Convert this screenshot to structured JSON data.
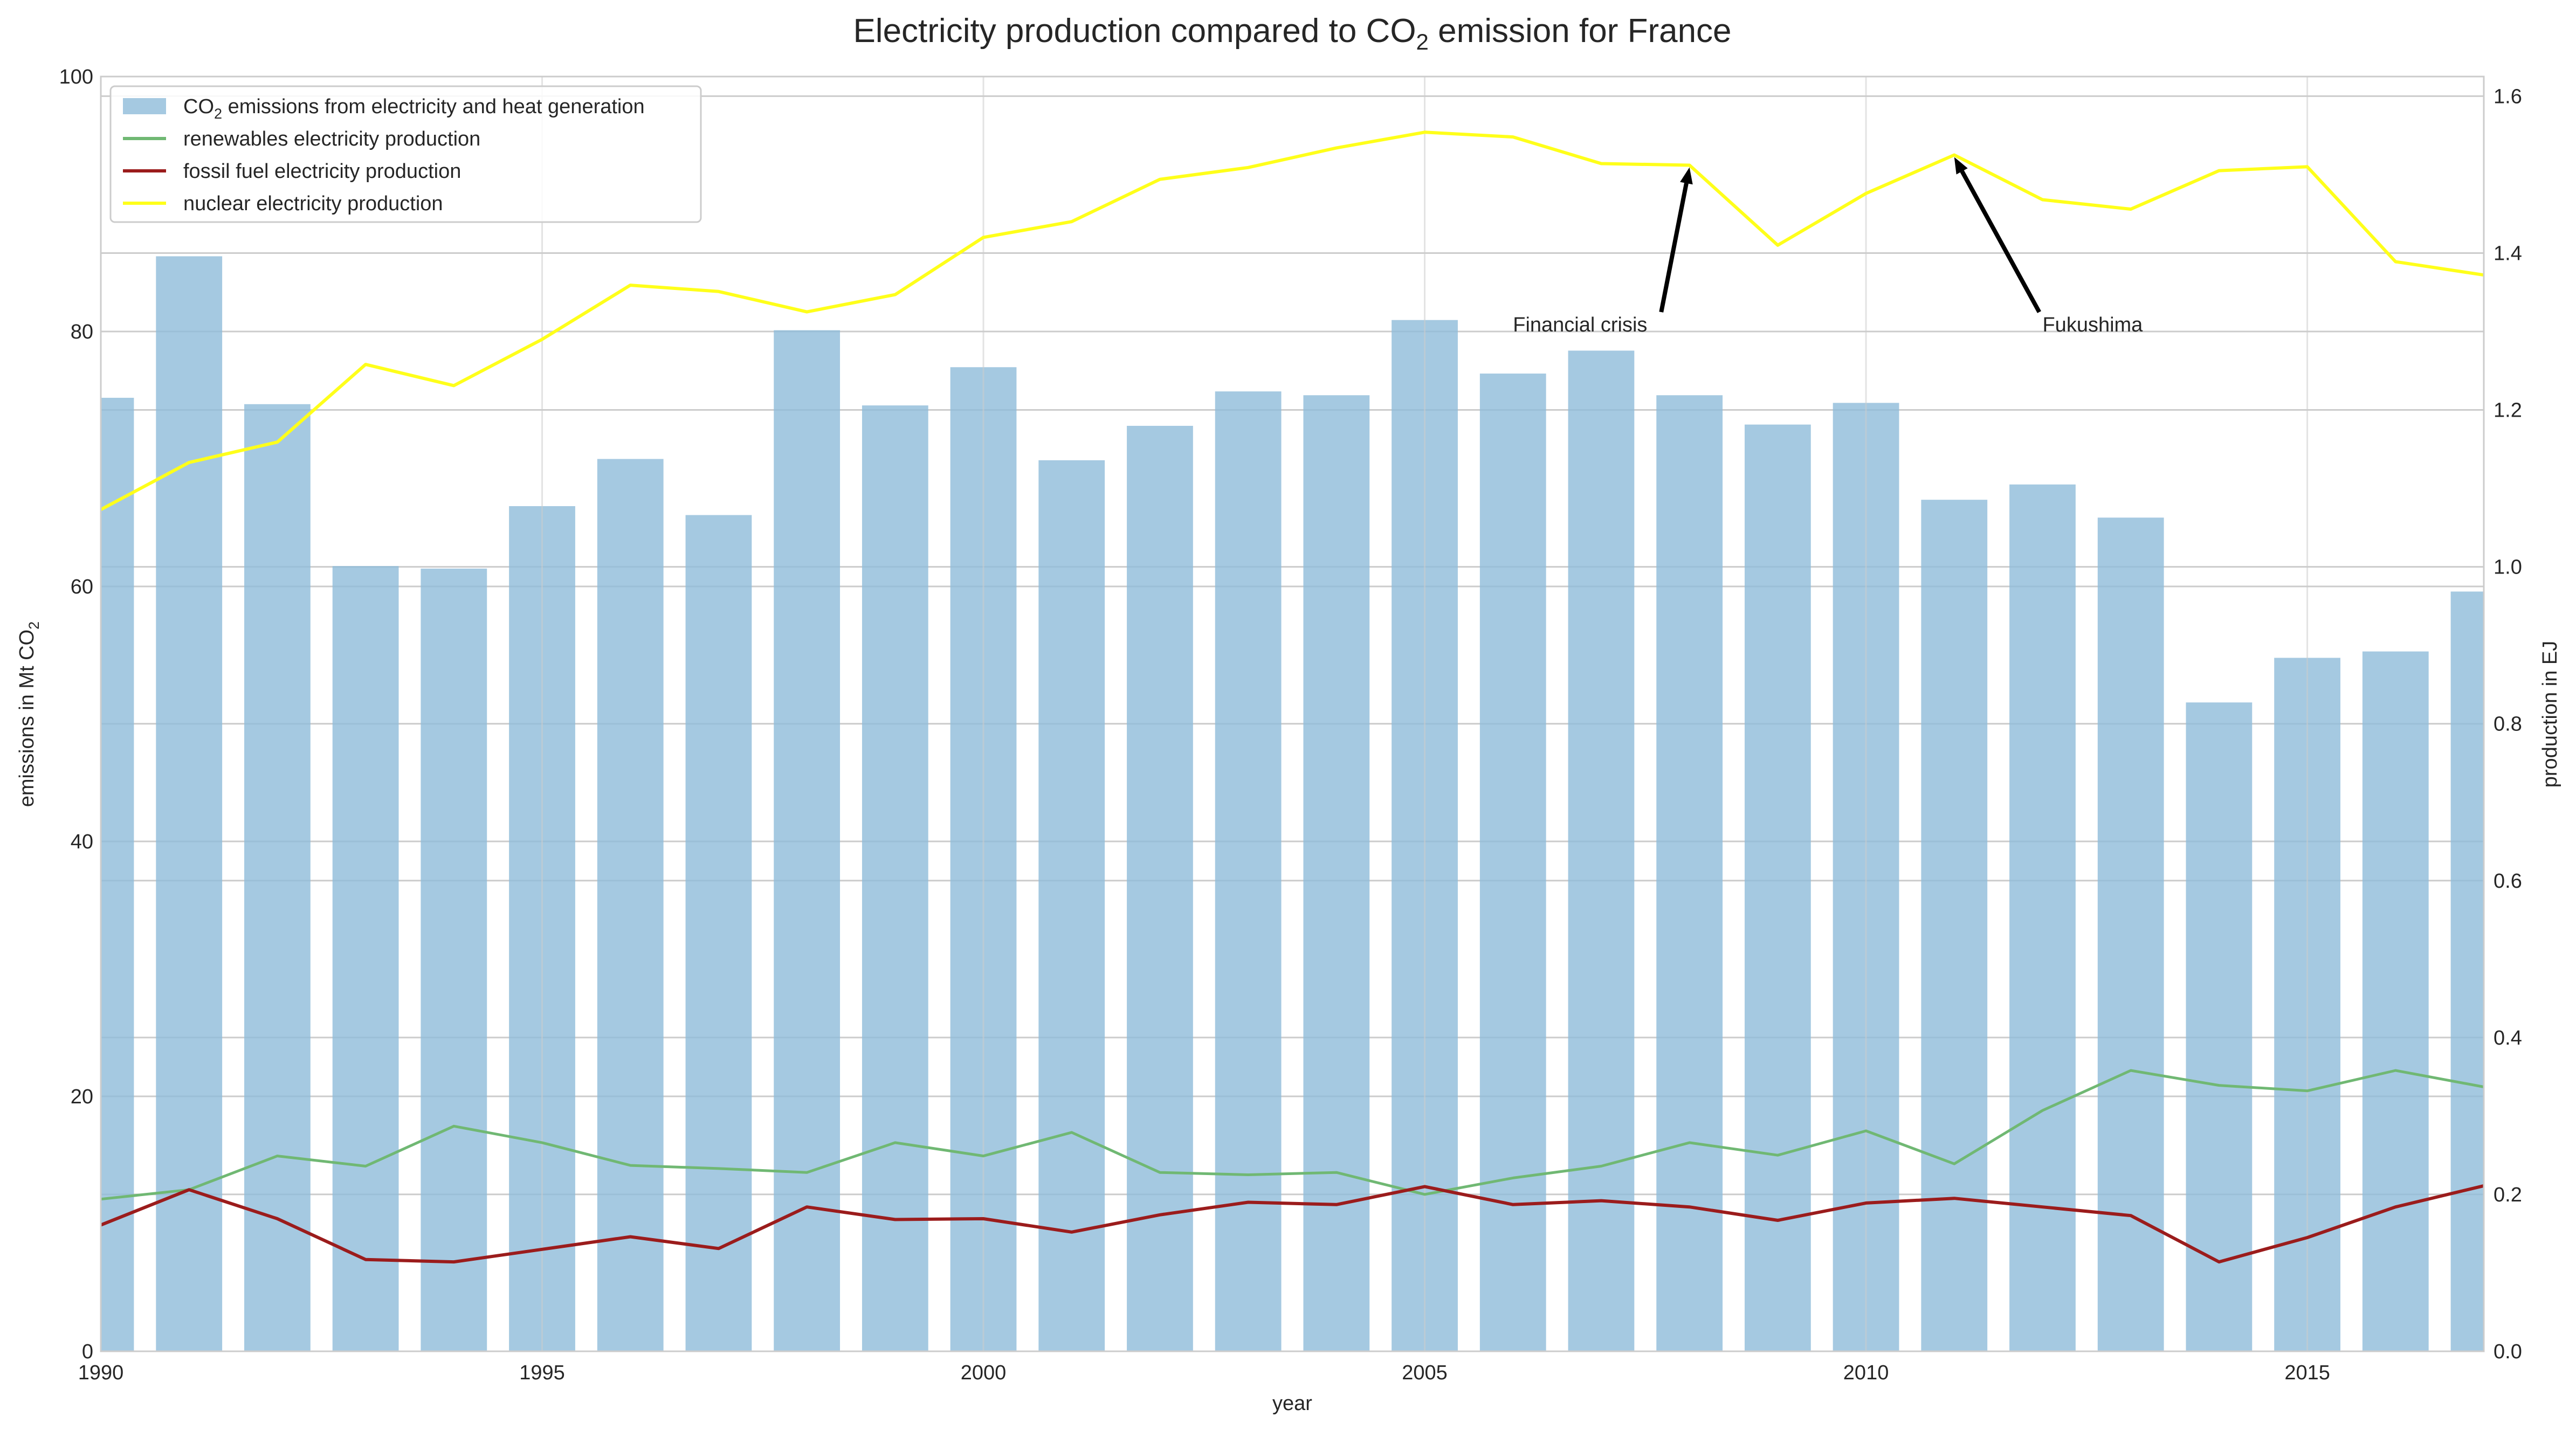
{
  "chart_data": {
    "type": "bar",
    "title": "Electricity production compared to CO",
    "title_sub": "2",
    "title_rest": " emission for France",
    "xlabel": "year",
    "ylabel_left": "emissions in Mt CO",
    "ylabel_left_sub": "2",
    "ylabel_right": "production in EJ",
    "xlim": [
      1990,
      2017
    ],
    "ylim_left": [
      0,
      100
    ],
    "ylim_right": [
      0,
      1.625
    ],
    "x_ticks": [
      "1990",
      "1995",
      "2000",
      "2005",
      "2010",
      "2015"
    ],
    "y_left_ticks": [
      "0",
      "20",
      "40",
      "60",
      "80",
      "100"
    ],
    "y_right_ticks": [
      "0.0",
      "0.2",
      "0.4",
      "0.6",
      "0.8",
      "1.0",
      "1.2",
      "1.4",
      "1.6"
    ],
    "grid": true,
    "legend_position": "top-left",
    "years": [
      1990,
      1991,
      1992,
      1993,
      1994,
      1995,
      1996,
      1997,
      1998,
      1999,
      2000,
      2001,
      2002,
      2003,
      2004,
      2005,
      2006,
      2007,
      2008,
      2009,
      2010,
      2011,
      2012,
      2013,
      2014,
      2015,
      2016,
      2017
    ],
    "bars": {
      "name": "CO",
      "name_sub": "2",
      "name_rest": " emissions from electricity and heat generation",
      "color": "#8fbbd9",
      "values": [
        74.8,
        85.9,
        74.3,
        61.6,
        61.4,
        66.3,
        70.0,
        65.6,
        80.1,
        74.2,
        77.2,
        69.9,
        72.6,
        75.3,
        75.0,
        80.9,
        76.7,
        78.5,
        75.0,
        72.7,
        74.4,
        66.8,
        68.0,
        65.4,
        50.9,
        54.4,
        54.9,
        59.6
      ]
    },
    "series": [
      {
        "name": "renewables electricity production",
        "color": "#70b873",
        "values": [
          0.194,
          0.206,
          0.249,
          0.236,
          0.287,
          0.266,
          0.237,
          0.233,
          0.228,
          0.266,
          0.249,
          0.279,
          0.228,
          0.225,
          0.228,
          0.2,
          0.221,
          0.236,
          0.266,
          0.25,
          0.281,
          0.239,
          0.307,
          0.358,
          0.339,
          0.332,
          0.358,
          0.337
        ]
      },
      {
        "name": "fossil fuel electricity production",
        "color": "#9b1c1c",
        "values": [
          0.161,
          0.206,
          0.169,
          0.117,
          0.114,
          0.13,
          0.146,
          0.131,
          0.184,
          0.168,
          0.169,
          0.152,
          0.174,
          0.19,
          0.187,
          0.21,
          0.187,
          0.192,
          0.184,
          0.167,
          0.189,
          0.195,
          0.184,
          0.173,
          0.114,
          0.145,
          0.184,
          0.211
        ]
      },
      {
        "name": "nuclear electricity production",
        "color": "#ffff1a",
        "values": [
          1.073,
          1.133,
          1.159,
          1.258,
          1.231,
          1.29,
          1.359,
          1.351,
          1.325,
          1.347,
          1.42,
          1.44,
          1.494,
          1.509,
          1.534,
          1.554,
          1.548,
          1.514,
          1.512,
          1.41,
          1.476,
          1.525,
          1.468,
          1.456,
          1.505,
          1.51,
          1.389,
          1.372
        ]
      }
    ],
    "annotations": [
      {
        "text": "Financial crisis",
        "x": 2008,
        "y": 1.512,
        "text_x": 2006,
        "text_y": 1.3
      },
      {
        "text": "Fukushima",
        "x": 2011,
        "y": 1.525,
        "text_x": 2012,
        "text_y": 1.3
      }
    ]
  }
}
